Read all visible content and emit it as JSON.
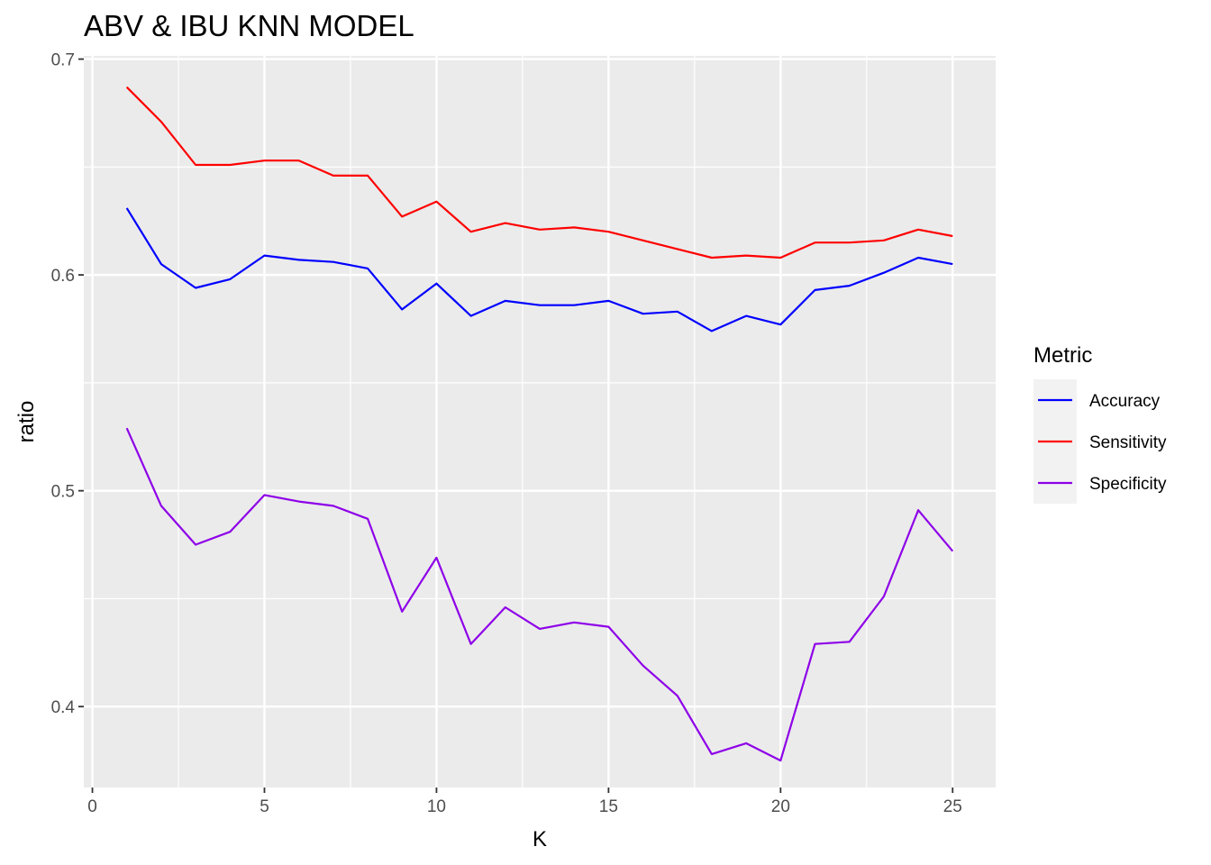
{
  "chart_data": {
    "type": "line",
    "title": "ABV & IBU KNN MODEL",
    "xlabel": "K",
    "ylabel": "ratio",
    "xlim": [
      -0.25,
      26.25
    ],
    "ylim": [
      0.3625,
      0.7015
    ],
    "x_ticks": [
      0,
      5,
      10,
      15,
      20,
      25
    ],
    "x_tick_labels": [
      "0",
      "5",
      "10",
      "15",
      "20",
      "25"
    ],
    "y_ticks": [
      0.4,
      0.5,
      0.6,
      0.7
    ],
    "y_tick_labels": [
      "0.4",
      "0.5",
      "0.6",
      "0.7"
    ],
    "grid": true,
    "legend": {
      "title": "Metric",
      "position": "right"
    },
    "x": [
      1,
      2,
      3,
      4,
      5,
      6,
      7,
      8,
      9,
      10,
      11,
      12,
      13,
      14,
      15,
      16,
      17,
      18,
      19,
      20,
      21,
      22,
      23,
      24,
      25
    ],
    "series": [
      {
        "name": "Accuracy",
        "color": "#0000ff",
        "values": [
          0.631,
          0.605,
          0.594,
          0.598,
          0.609,
          0.607,
          0.606,
          0.603,
          0.584,
          0.596,
          0.581,
          0.588,
          0.586,
          0.586,
          0.588,
          0.582,
          0.583,
          0.574,
          0.581,
          0.577,
          0.593,
          0.595,
          0.601,
          0.608,
          0.605
        ]
      },
      {
        "name": "Sensitivity",
        "color": "#ff0000",
        "values": [
          0.687,
          0.671,
          0.651,
          0.651,
          0.653,
          0.653,
          0.646,
          0.646,
          0.627,
          0.634,
          0.62,
          0.624,
          0.621,
          0.622,
          0.62,
          0.616,
          0.612,
          0.608,
          0.609,
          0.608,
          0.615,
          0.615,
          0.616,
          0.621,
          0.618
        ]
      },
      {
        "name": "Specificity",
        "color": "#8e00e8",
        "values": [
          0.529,
          0.493,
          0.475,
          0.481,
          0.498,
          0.495,
          0.493,
          0.487,
          0.444,
          0.469,
          0.429,
          0.446,
          0.436,
          0.439,
          0.437,
          0.419,
          0.405,
          0.378,
          0.383,
          0.375,
          0.429,
          0.43,
          0.451,
          0.491,
          0.472
        ]
      }
    ]
  }
}
